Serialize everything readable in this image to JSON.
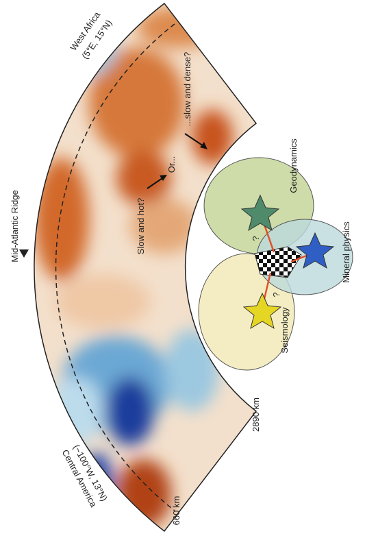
{
  "map": {
    "ridge": "Mid-Atlantic Ridge",
    "west_africa": {
      "name": "West Africa",
      "coords": "(5°E, 15°N)"
    },
    "central_america": {
      "name": "Central America",
      "coords": "(~100°W, 13°N)"
    },
    "depths": [
      "660 km",
      "2890 km"
    ],
    "annotations": [
      "Slow and hot?",
      "Or...",
      "...slow and dense?"
    ]
  },
  "diagram": {
    "circles": [
      "Geodynamics",
      "Mineral physics",
      "Seismology"
    ],
    "question": "?"
  }
}
